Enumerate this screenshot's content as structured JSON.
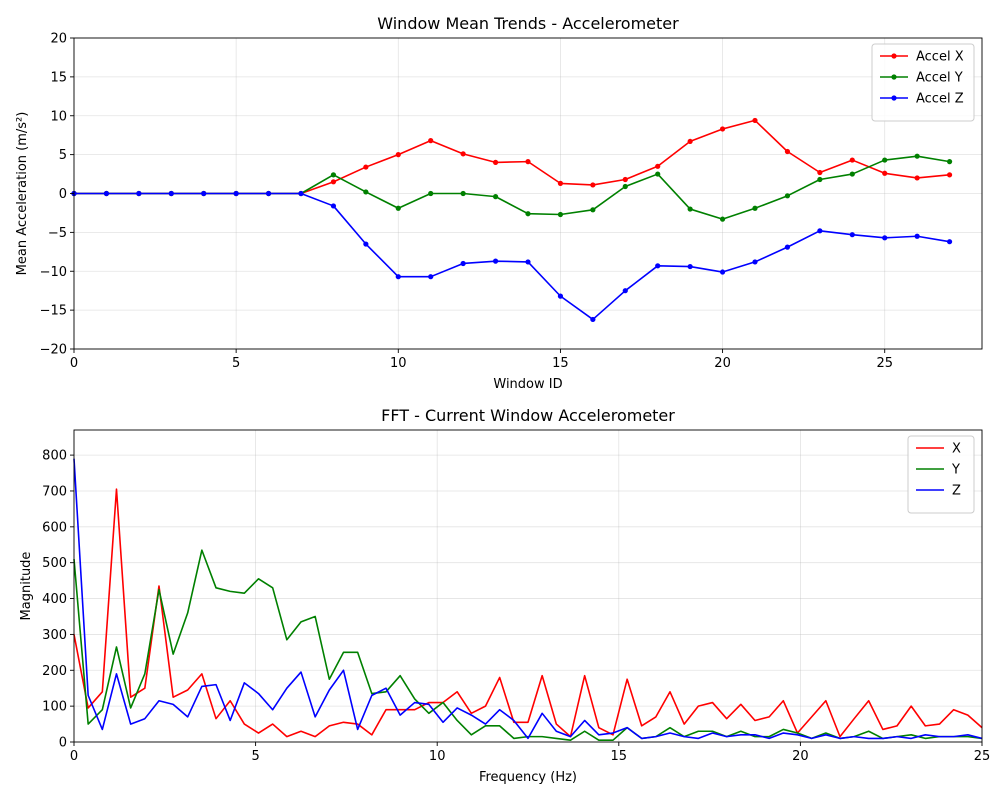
{
  "chart_data": [
    {
      "type": "line",
      "title": "Window Mean Trends - Accelerometer",
      "xlabel": "Window ID",
      "ylabel": "Mean Acceleration (m/s²)",
      "xlim": [
        0,
        28
      ],
      "ylim": [
        -20,
        20
      ],
      "xticks": [
        0,
        5,
        10,
        15,
        20,
        25
      ],
      "yticks": [
        -20,
        -15,
        -10,
        -5,
        0,
        5,
        10,
        15,
        20
      ],
      "grid": true,
      "legend": "top-right",
      "markers": true,
      "x": [
        0,
        1,
        2,
        3,
        4,
        5,
        6,
        7,
        8,
        9,
        10,
        11,
        12,
        13,
        14,
        15,
        16,
        17,
        18,
        19,
        20,
        21,
        22,
        23,
        24,
        25,
        26,
        27
      ],
      "series": [
        {
          "name": "Accel X",
          "color": "#ff0000",
          "values": [
            0,
            0,
            0,
            0,
            0,
            0,
            0,
            0,
            1.5,
            3.4,
            5.0,
            6.8,
            5.1,
            4.0,
            4.1,
            1.3,
            1.1,
            1.8,
            3.5,
            6.7,
            8.3,
            9.4,
            5.4,
            2.7,
            4.3,
            2.6,
            2.0,
            2.4
          ]
        },
        {
          "name": "Accel Y",
          "color": "#008000",
          "values": [
            0,
            0,
            0,
            0,
            0,
            0,
            0,
            0,
            2.4,
            0.2,
            -1.9,
            0.0,
            0.0,
            -0.4,
            -2.6,
            -2.7,
            -2.1,
            0.9,
            2.5,
            -2.0,
            -3.3,
            -1.9,
            -0.3,
            1.8,
            2.5,
            4.3,
            4.8,
            4.1
          ]
        },
        {
          "name": "Accel Z",
          "color": "#0000ff",
          "values": [
            0,
            0,
            0,
            0,
            0,
            0,
            0,
            0,
            -1.6,
            -6.5,
            -10.7,
            -10.7,
            -9.0,
            -8.7,
            -8.8,
            -13.2,
            -16.2,
            -12.5,
            -9.3,
            -9.4,
            -10.1,
            -8.8,
            -6.9,
            -4.8,
            -5.3,
            -5.7,
            -5.5,
            -6.2
          ]
        }
      ]
    },
    {
      "type": "line",
      "title": "FFT - Current Window Accelerometer",
      "xlabel": "Frequency (Hz)",
      "ylabel": "Magnitude",
      "xlim": [
        0,
        25
      ],
      "ylim": [
        0,
        870
      ],
      "xticks": [
        0,
        5,
        10,
        15,
        20,
        25
      ],
      "yticks": [
        0,
        100,
        200,
        300,
        400,
        500,
        600,
        700,
        800
      ],
      "grid": true,
      "legend": "top-right",
      "markers": false,
      "x": [
        0,
        0.39,
        0.78,
        1.17,
        1.56,
        1.95,
        2.34,
        2.73,
        3.13,
        3.52,
        3.91,
        4.3,
        4.69,
        5.08,
        5.47,
        5.86,
        6.25,
        6.64,
        7.03,
        7.42,
        7.81,
        8.2,
        8.59,
        8.98,
        9.38,
        9.77,
        10.16,
        10.55,
        10.94,
        11.33,
        11.72,
        12.11,
        12.5,
        12.89,
        13.28,
        13.67,
        14.06,
        14.45,
        14.84,
        15.23,
        15.63,
        16.02,
        16.41,
        16.8,
        17.19,
        17.58,
        17.97,
        18.36,
        18.75,
        19.14,
        19.53,
        19.92,
        20.31,
        20.7,
        21.09,
        21.48,
        21.88,
        22.27,
        22.66,
        23.05,
        23.44,
        23.83,
        24.22,
        24.61,
        25.0
      ],
      "series": [
        {
          "name": "X",
          "color": "#ff0000",
          "values": [
            300,
            95,
            140,
            705,
            125,
            150,
            435,
            125,
            145,
            190,
            65,
            115,
            50,
            25,
            50,
            15,
            30,
            15,
            45,
            55,
            50,
            20,
            90,
            90,
            90,
            110,
            110,
            140,
            80,
            100,
            180,
            55,
            55,
            185,
            50,
            15,
            185,
            40,
            20,
            175,
            45,
            70,
            140,
            50,
            100,
            110,
            65,
            105,
            60,
            70,
            115,
            25,
            70,
            115,
            15,
            65,
            115,
            35,
            45,
            100,
            45,
            50,
            90,
            75,
            40
          ]
        },
        {
          "name": "Y",
          "color": "#008000",
          "values": [
            510,
            50,
            90,
            265,
            95,
            190,
            425,
            245,
            360,
            535,
            430,
            420,
            415,
            455,
            430,
            285,
            335,
            350,
            175,
            250,
            250,
            135,
            140,
            185,
            120,
            80,
            110,
            60,
            20,
            45,
            45,
            10,
            15,
            15,
            10,
            5,
            30,
            5,
            5,
            40,
            10,
            15,
            40,
            15,
            30,
            30,
            15,
            30,
            15,
            15,
            35,
            25,
            10,
            25,
            10,
            15,
            30,
            10,
            15,
            20,
            10,
            15,
            15,
            15,
            10
          ]
        },
        {
          "name": "Z",
          "color": "#0000ff",
          "values": [
            790,
            130,
            35,
            190,
            50,
            65,
            115,
            105,
            70,
            155,
            160,
            60,
            165,
            135,
            90,
            150,
            195,
            70,
            145,
            200,
            35,
            130,
            150,
            75,
            110,
            105,
            55,
            95,
            75,
            50,
            90,
            60,
            10,
            80,
            30,
            15,
            60,
            20,
            25,
            40,
            10,
            15,
            25,
            15,
            10,
            25,
            15,
            20,
            20,
            10,
            25,
            20,
            10,
            20,
            10,
            15,
            10,
            10,
            15,
            10,
            20,
            15,
            15,
            20,
            10
          ]
        }
      ]
    }
  ]
}
